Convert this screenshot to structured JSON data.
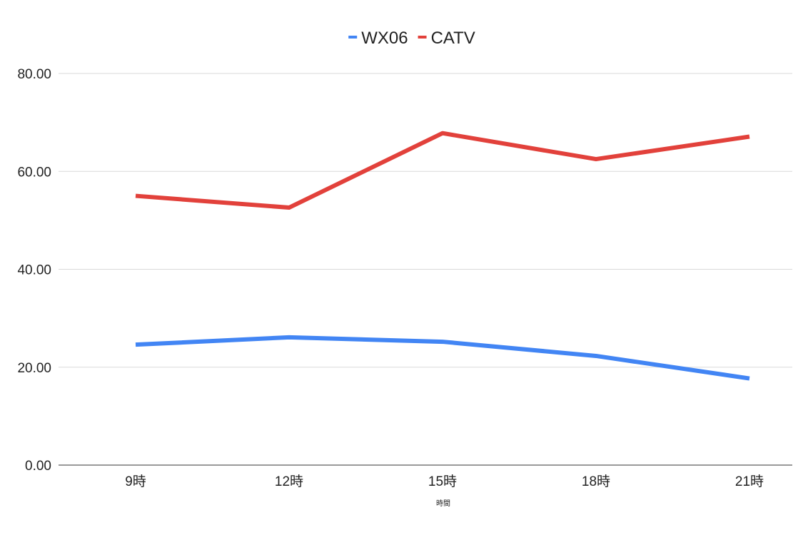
{
  "chart_data": {
    "type": "line",
    "categories": [
      "9時",
      "12時",
      "15時",
      "18時",
      "21時"
    ],
    "series": [
      {
        "name": "WX06",
        "color": "#4285f4",
        "values": [
          24.6,
          26.1,
          25.2,
          22.3,
          17.7
        ]
      },
      {
        "name": "CATV",
        "color": "#e2413b",
        "values": [
          55.0,
          52.6,
          67.8,
          62.5,
          67.1
        ]
      }
    ],
    "title": "",
    "xlabel": "時間",
    "ylabel": "",
    "ylim": [
      0,
      80
    ],
    "yticks": [
      "0.00",
      "20.00",
      "40.00",
      "60.00",
      "80.00"
    ],
    "grid": true,
    "legend_position": "top-center"
  }
}
